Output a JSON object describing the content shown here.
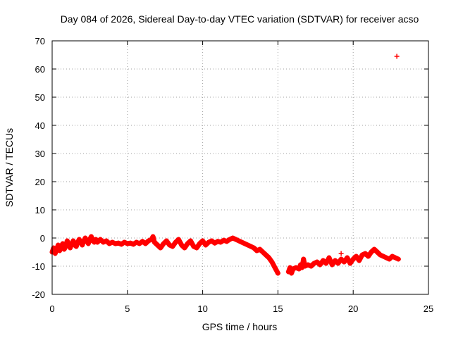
{
  "chart_data": {
    "type": "scatter",
    "title": "Day 084 of 2026, Sidereal Day-to-day VTEC variation (SDTVAR) for receiver acso",
    "xlabel": "GPS time / hours",
    "ylabel": "SDTVAR / TECUs",
    "xlim": [
      0,
      25
    ],
    "ylim": [
      -20,
      70
    ],
    "xticks": [
      0,
      5,
      10,
      15,
      20,
      25
    ],
    "yticks": [
      -20,
      -10,
      0,
      10,
      20,
      30,
      40,
      50,
      60,
      70
    ],
    "grid": true,
    "marker": "+",
    "series": [
      {
        "name": "SDTVAR",
        "color": "#ff0000",
        "points": [
          [
            0.0,
            -5
          ],
          [
            0.1,
            -3.5
          ],
          [
            0.2,
            -5.5
          ],
          [
            0.3,
            -4
          ],
          [
            0.4,
            -2.5
          ],
          [
            0.5,
            -4.5
          ],
          [
            0.6,
            -3
          ],
          [
            0.7,
            -2
          ],
          [
            0.8,
            -4
          ],
          [
            0.9,
            -3
          ],
          [
            1.0,
            -1
          ],
          [
            1.1,
            -2.5
          ],
          [
            1.2,
            -3.5
          ],
          [
            1.3,
            -2
          ],
          [
            1.4,
            -1
          ],
          [
            1.5,
            -2.5
          ],
          [
            1.6,
            -3
          ],
          [
            1.7,
            -1.5
          ],
          [
            1.8,
            -0.5
          ],
          [
            1.9,
            -1.5
          ],
          [
            2.0,
            -2.5
          ],
          [
            2.1,
            -1
          ],
          [
            2.2,
            0
          ],
          [
            2.3,
            -1
          ],
          [
            2.4,
            -2
          ],
          [
            2.5,
            -0.5
          ],
          [
            2.6,
            0.5
          ],
          [
            2.7,
            -1
          ],
          [
            2.8,
            -1.5
          ],
          [
            2.9,
            -0.5
          ],
          [
            3.0,
            -1.5
          ],
          [
            3.2,
            -0.5
          ],
          [
            3.4,
            -1.5
          ],
          [
            3.6,
            -1
          ],
          [
            3.8,
            -2
          ],
          [
            4.0,
            -1.5
          ],
          [
            4.2,
            -2
          ],
          [
            4.4,
            -1.8
          ],
          [
            4.6,
            -2.2
          ],
          [
            4.8,
            -1.5
          ],
          [
            5.0,
            -2
          ],
          [
            5.2,
            -1.8
          ],
          [
            5.4,
            -2.2
          ],
          [
            5.6,
            -1.5
          ],
          [
            5.8,
            -2
          ],
          [
            6.0,
            -1.2
          ],
          [
            6.2,
            -2
          ],
          [
            6.4,
            -1
          ],
          [
            6.6,
            -0.5
          ],
          [
            6.7,
            0.5
          ],
          [
            6.8,
            -1.5
          ],
          [
            7.0,
            -2.5
          ],
          [
            7.2,
            -3.5
          ],
          [
            7.4,
            -2
          ],
          [
            7.6,
            -1
          ],
          [
            7.8,
            -2.5
          ],
          [
            8.0,
            -3
          ],
          [
            8.2,
            -1.5
          ],
          [
            8.4,
            -0.5
          ],
          [
            8.6,
            -2.5
          ],
          [
            8.8,
            -3.5
          ],
          [
            9.0,
            -2
          ],
          [
            9.2,
            -1
          ],
          [
            9.4,
            -3
          ],
          [
            9.6,
            -3.5
          ],
          [
            9.8,
            -2
          ],
          [
            10.0,
            -1
          ],
          [
            10.2,
            -2.5
          ],
          [
            10.4,
            -1.5
          ],
          [
            10.6,
            -1
          ],
          [
            10.8,
            -1.8
          ],
          [
            11.0,
            -1.2
          ],
          [
            11.2,
            -1.5
          ],
          [
            11.4,
            -0.8
          ],
          [
            11.6,
            -1.2
          ],
          [
            11.8,
            -0.5
          ],
          [
            12.0,
            0
          ],
          [
            12.2,
            -0.5
          ],
          [
            12.4,
            -1
          ],
          [
            12.6,
            -1.5
          ],
          [
            12.8,
            -2
          ],
          [
            13.0,
            -2.5
          ],
          [
            13.2,
            -3
          ],
          [
            13.4,
            -3.5
          ],
          [
            13.6,
            -4.5
          ],
          [
            13.8,
            -4
          ],
          [
            14.0,
            -5
          ],
          [
            14.2,
            -6
          ],
          [
            14.4,
            -7
          ],
          [
            14.6,
            -8.5
          ],
          [
            14.7,
            -9.5
          ],
          [
            14.8,
            -10.5
          ],
          [
            14.9,
            -11.5
          ],
          [
            15.0,
            -12.5
          ],
          [
            15.7,
            -12
          ],
          [
            15.8,
            -10.5
          ],
          [
            15.9,
            -12.5
          ],
          [
            16.0,
            -11
          ],
          [
            16.2,
            -10.5
          ],
          [
            16.4,
            -11
          ],
          [
            16.5,
            -9.5
          ],
          [
            16.6,
            -10.5
          ],
          [
            16.7,
            -7.5
          ],
          [
            16.8,
            -10
          ],
          [
            17.0,
            -9.5
          ],
          [
            17.2,
            -10
          ],
          [
            17.4,
            -9
          ],
          [
            17.6,
            -8.5
          ],
          [
            17.8,
            -9.5
          ],
          [
            18.0,
            -8
          ],
          [
            18.2,
            -9
          ],
          [
            18.4,
            -7
          ],
          [
            18.6,
            -9.5
          ],
          [
            18.8,
            -8
          ],
          [
            19.0,
            -9
          ],
          [
            19.2,
            -7.5
          ],
          [
            19.4,
            -8.5
          ],
          [
            19.6,
            -7
          ],
          [
            19.8,
            -9
          ],
          [
            20.0,
            -7.5
          ],
          [
            20.2,
            -6.5
          ],
          [
            20.4,
            -8
          ],
          [
            20.6,
            -6
          ],
          [
            20.8,
            -5.5
          ],
          [
            21.0,
            -6.5
          ],
          [
            21.2,
            -5
          ],
          [
            21.4,
            -4
          ],
          [
            21.6,
            -5
          ],
          [
            21.8,
            -6
          ],
          [
            22.0,
            -6.5
          ],
          [
            22.2,
            -7
          ],
          [
            22.4,
            -7.5
          ],
          [
            22.6,
            -6.5
          ],
          [
            22.8,
            -7
          ],
          [
            23.0,
            -7.5
          ],
          [
            19.2,
            -5.5
          ],
          [
            22.9,
            64.5
          ]
        ]
      }
    ]
  }
}
